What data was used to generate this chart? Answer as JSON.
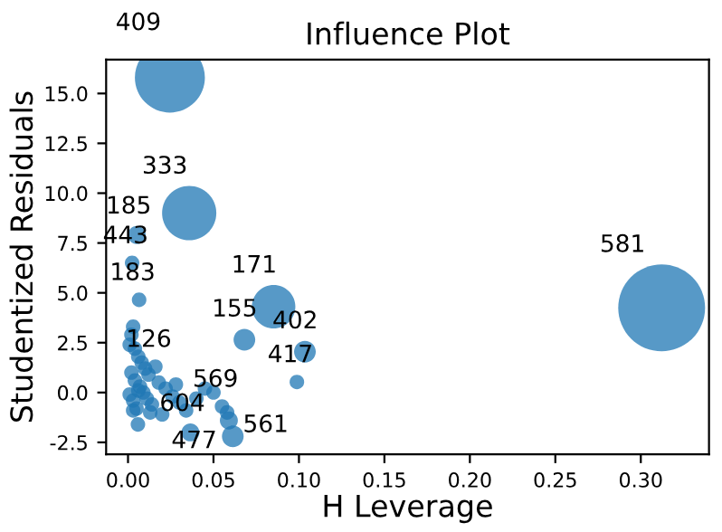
{
  "chart_data": {
    "type": "bubble",
    "title": "Influence Plot",
    "xlabel": "H Leverage",
    "ylabel": "Studentized Residuals",
    "x": [
      0.0245,
      0.0358,
      0.0051,
      0.0024,
      0.0065,
      0.0852,
      0.3122,
      0.0681,
      0.1035,
      0.0988,
      0.0365,
      0.0613,
      0.0058,
      0.059,
      0.016,
      0.05,
      0.055,
      0.058,
      0.034,
      0.003,
      0.002,
      0.001,
      0.004,
      0.006,
      0.008,
      0.01,
      0.012,
      0.002,
      0.004,
      0.007,
      0.009,
      0.011,
      0.014,
      0.018,
      0.022,
      0.026,
      0.03,
      0.003,
      0.005,
      0.013,
      0.02,
      0.028,
      0.04,
      0.045,
      0.001,
      0.003,
      0.006
    ],
    "values": [
      15.8,
      9.0,
      7.9,
      6.5,
      4.65,
      4.3,
      4.25,
      2.65,
      2.05,
      0.53,
      -2.0,
      -2.2,
      -1.6,
      -1.4,
      1.3,
      0.0,
      -0.7,
      -1.0,
      -0.9,
      3.3,
      2.9,
      2.4,
      2.2,
      1.8,
      1.5,
      1.2,
      0.9,
      1.0,
      0.6,
      0.3,
      0.0,
      -0.3,
      -0.6,
      0.5,
      0.2,
      -0.2,
      -0.5,
      -0.4,
      -0.8,
      -1.0,
      -1.1,
      0.4,
      -0.3,
      0.2,
      -0.1,
      -0.9,
      0.1
    ],
    "sizes": [
      0.65,
      0.39,
      0.043,
      0.028,
      0.028,
      0.25,
      1,
      0.0625,
      0.0625,
      0.028,
      0.043,
      0.0625,
      0.028,
      0.043,
      0.028,
      0.028,
      0.028,
      0.028,
      0.028,
      0.028,
      0.028,
      0.028,
      0.028,
      0.028,
      0.028,
      0.028,
      0.028,
      0.028,
      0.028,
      0.028,
      0.028,
      0.028,
      0.028,
      0.028,
      0.028,
      0.028,
      0.028,
      0.028,
      0.028,
      0.028,
      0.028,
      0.028,
      0.028,
      0.028,
      0.028,
      0.028,
      0.028
    ],
    "color": "#1f77b4",
    "xlim": [
      -0.0128,
      0.3399
    ],
    "xticks": [
      {
        "value": 0.0,
        "label": "0.00"
      },
      0.05,
      {
        "value": 0.1,
        "label": "0.10"
      },
      0.15,
      {
        "value": 0.2,
        "label": "0.20"
      },
      0.25,
      {
        "value": 0.3,
        "label": "0.30"
      }
    ],
    "ylim": [
      -3.1,
      16.7
    ],
    "yticks": [
      -2.5,
      {
        "value": 0,
        "label": "0.0"
      },
      2.5,
      {
        "value": 5,
        "label": "5.0"
      },
      7.5,
      {
        "value": 10,
        "label": "10.0"
      },
      12.5,
      {
        "value": 15,
        "label": "15.0"
      }
    ],
    "annotations": [
      {
        "text": "409",
        "x": 0.0245,
        "y": 15.8
      },
      {
        "text": "333",
        "x": 0.0358,
        "y": 9.0
      },
      {
        "text": "185",
        "x": 0.0051,
        "y": 7.9
      },
      {
        "text": "443",
        "x": 0.0024,
        "y": 6.5
      },
      {
        "text": "183",
        "x": 0.0065,
        "y": 4.65
      },
      {
        "text": "171",
        "x": 0.0852,
        "y": 4.3
      },
      {
        "text": "581",
        "x": 0.3122,
        "y": 4.25
      },
      {
        "text": "155",
        "x": 0.0681,
        "y": 2.65
      },
      {
        "text": "402",
        "x": 0.1035,
        "y": 2.05
      },
      {
        "text": "417",
        "x": 0.0988,
        "y": 0.53
      },
      {
        "text": "126",
        "x": 0.016,
        "y": 1.3
      },
      {
        "text": "569",
        "x": 0.055,
        "y": -0.7
      },
      {
        "text": "561",
        "x": 0.059,
        "y": -1.4
      },
      {
        "text": "477",
        "x": 0.0613,
        "y": -2.2
      },
      {
        "text": "604",
        "x": 0.0365,
        "y": -2.0
      }
    ]
  }
}
